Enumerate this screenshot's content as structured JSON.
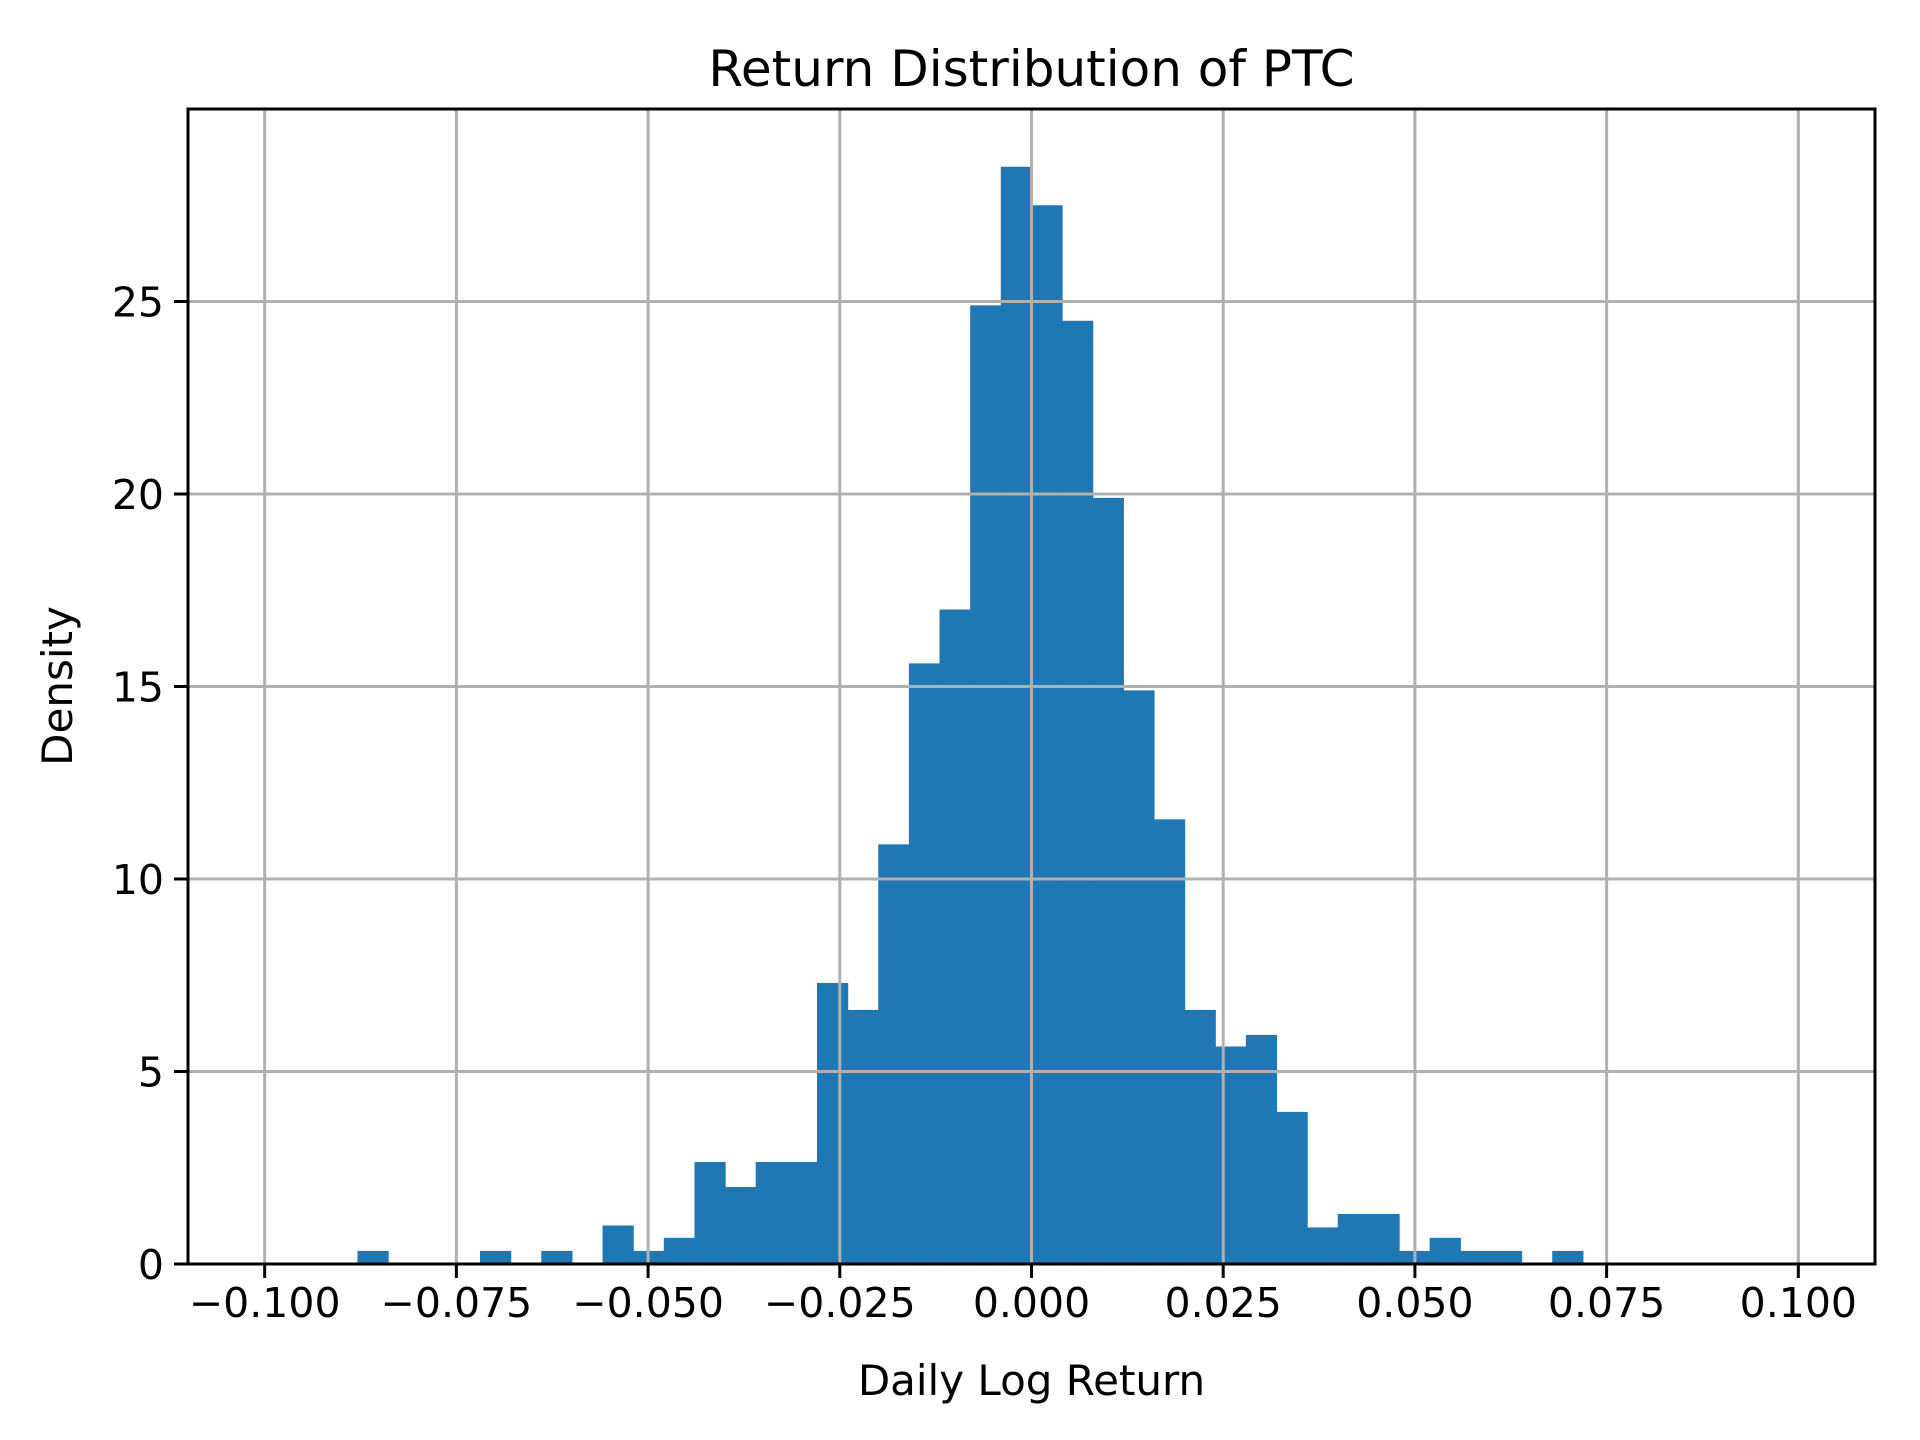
{
  "figure": {
    "background": "#ffffff"
  },
  "chart_data": {
    "type": "bar",
    "subtype": "histogram",
    "title": "Return Distribution of PTC",
    "xlabel": "Daily Log Return",
    "ylabel": "Density",
    "bar_color": "#1f77b4",
    "grid": true,
    "grid_color": "#b0b0b0",
    "spine_color": "#000000",
    "tick_color": "#000000",
    "text_color": "#000000",
    "legend": "none",
    "xlim": [
      -0.11,
      0.11
    ],
    "ylim": [
      0,
      30
    ],
    "x_tick_values": [
      -0.1,
      -0.075,
      -0.05,
      -0.025,
      0.0,
      0.025,
      0.05,
      0.075,
      0.1
    ],
    "x_tick_labels": [
      "−0.100",
      "−0.075",
      "−0.050",
      "−0.025",
      "0.000",
      "0.025",
      "0.050",
      "0.075",
      "0.100"
    ],
    "y_tick_values": [
      0,
      5,
      10,
      15,
      20,
      25
    ],
    "y_tick_labels": [
      "0",
      "5",
      "10",
      "15",
      "20",
      "25"
    ],
    "bin_edges": [
      -0.0879,
      -0.083905,
      -0.07991,
      -0.075915,
      -0.07192,
      -0.067925,
      -0.06393,
      -0.059935,
      -0.05594,
      -0.051945,
      -0.04795,
      -0.043955,
      -0.03996,
      -0.035965,
      -0.03197,
      -0.027975,
      -0.02398,
      -0.019985,
      -0.01599,
      -0.011995,
      -0.008,
      -0.004005,
      -1e-05,
      0.003985,
      0.00798,
      0.011975,
      0.01597,
      0.019965,
      0.02396,
      0.027955,
      0.03195,
      0.035945,
      0.03994,
      0.043935,
      0.04793,
      0.051925,
      0.05592,
      0.059915,
      0.06391,
      0.067905,
      0.0719
    ],
    "densities": [
      0.34,
      0,
      0,
      0,
      0.34,
      0,
      0.34,
      0,
      1.0,
      0.34,
      0.68,
      2.65,
      2.0,
      2.65,
      2.65,
      7.3,
      6.6,
      10.9,
      15.6,
      17.0,
      24.9,
      28.5,
      27.5,
      24.5,
      19.9,
      14.9,
      11.55,
      6.6,
      5.65,
      5.95,
      3.95,
      0.95,
      1.3,
      1.3,
      0.34,
      0.68,
      0.34,
      0.34,
      0,
      0.34
    ]
  }
}
